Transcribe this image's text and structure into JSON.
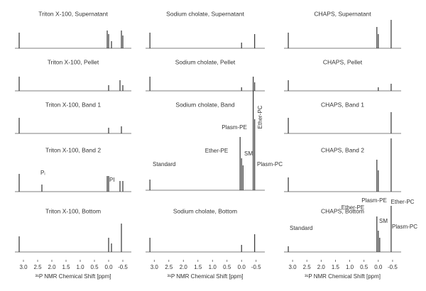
{
  "chart_data": [
    {
      "type": "spectrum",
      "xlim": [
        3.3,
        -0.8
      ],
      "xticks": [
        {
          "value": 3,
          "label": "3.0"
        },
        2.5,
        {
          "value": 2,
          "label": "2.0"
        },
        1.5,
        {
          "value": 1,
          "label": "1.0"
        },
        0.5,
        {
          "value": 0,
          "label": "0.0"
        },
        -0.5
      ],
      "xlabel": "³¹P NMR Chemical Shift [ppm]",
      "panels": [
        {
          "title": "Triton X-100, Supernatant",
          "ppm": [
            3.15,
            0.05,
            0.0,
            -0.1,
            -0.45,
            -0.5
          ],
          "intensity": [
            22,
            25,
            20,
            10,
            25,
            18
          ],
          "annotations": []
        },
        {
          "title": "Triton X-100, Pellet",
          "ppm": [
            3.15,
            0.0,
            -0.4,
            -0.5
          ],
          "intensity": [
            20,
            8,
            15,
            8
          ],
          "annotations": []
        },
        {
          "title": "Triton X-100, Band 1",
          "ppm": [
            3.15,
            0.0,
            -0.45
          ],
          "intensity": [
            22,
            8,
            10
          ],
          "annotations": []
        },
        {
          "title": "Triton X-100, Band 2",
          "ppm": [
            3.15,
            2.35,
            0.05,
            0.0,
            -0.4,
            -0.5
          ],
          "intensity": [
            25,
            10,
            22,
            22,
            15,
            15
          ],
          "annotations": [
            "Pᵢ",
            "PI"
          ]
        },
        {
          "title": "Triton X-100, Bottom",
          "ppm": [
            3.15,
            0.0,
            -0.1,
            -0.45
          ],
          "intensity": [
            22,
            20,
            12,
            40
          ],
          "annotations": []
        }
      ]
    },
    {
      "type": "spectrum",
      "xlim": [
        3.3,
        -0.8
      ],
      "xticks": [
        {
          "value": 3,
          "label": "3.0"
        },
        2.5,
        {
          "value": 2,
          "label": "2.0"
        },
        1.5,
        {
          "value": 1,
          "label": "1.0"
        },
        0.5,
        {
          "value": 0,
          "label": "0.0"
        },
        -0.5
      ],
      "xlabel": "³¹P NMR Chemical Shift [ppm]",
      "panels": [
        {
          "title": "Sodium cholate, Supernatant",
          "ppm": [
            3.15,
            0.0,
            -0.45
          ],
          "intensity": [
            22,
            8,
            20
          ],
          "annotations": []
        },
        {
          "title": "Sodium cholate, Pellet",
          "ppm": [
            3.15,
            0.0,
            -0.45
          ],
          "intensity": [
            20,
            5,
            12
          ],
          "annotations": []
        },
        {
          "title": "Sodium cholate, Band",
          "ppm": [
            3.15,
            0.05,
            0.0,
            -0.05,
            -0.4,
            -0.45
          ],
          "intensity": [
            15,
            75,
            45,
            35,
            160,
            100
          ],
          "annotations": [
            "Standard",
            "Plasm-PE",
            "Ether-PE",
            "SM",
            "Ether-PC",
            "Plasm-PC"
          ]
        },
        {
          "title": "Sodium cholate, Bottom",
          "ppm": [
            3.15,
            0.0,
            -0.45
          ],
          "intensity": [
            20,
            10,
            25
          ],
          "annotations": []
        }
      ]
    },
    {
      "type": "spectrum",
      "xlim": [
        3.3,
        -0.8
      ],
      "xticks": [
        {
          "value": 3,
          "label": "3.0"
        },
        2.5,
        {
          "value": 2,
          "label": "2.0"
        },
        1.5,
        {
          "value": 1,
          "label": "1.0"
        },
        0.5,
        {
          "value": 0,
          "label": "0.0"
        },
        -0.5
      ],
      "xlabel": "³¹P NMR Chemical Shift [ppm]",
      "panels": [
        {
          "title": "CHAPS, Supernatant",
          "ppm": [
            3.15,
            0.05,
            0.0,
            -0.45
          ],
          "intensity": [
            22,
            30,
            20,
            40
          ],
          "annotations": []
        },
        {
          "title": "CHAPS, Pellet",
          "ppm": [
            3.15,
            0.0,
            -0.45
          ],
          "intensity": [
            15,
            5,
            10
          ],
          "annotations": []
        },
        {
          "title": "CHAPS, Band 1",
          "ppm": [
            3.15,
            -0.45
          ],
          "intensity": [
            22,
            30
          ],
          "annotations": []
        },
        {
          "title": "CHAPS, Band 2",
          "ppm": [
            3.15,
            0.05,
            0.0,
            -0.45
          ],
          "intensity": [
            20,
            45,
            30,
            75
          ],
          "annotations": []
        },
        {
          "title": "CHAPS, Bottom",
          "ppm": [
            3.15,
            0.05,
            0.0,
            -0.05,
            -0.45
          ],
          "intensity": [
            8,
            50,
            30,
            20,
            65
          ],
          "annotations": [
            "Standard",
            "Plasm-PE",
            "Ether-PE",
            "SM",
            "Ether-PC",
            "Plasm-PC"
          ]
        }
      ]
    }
  ]
}
